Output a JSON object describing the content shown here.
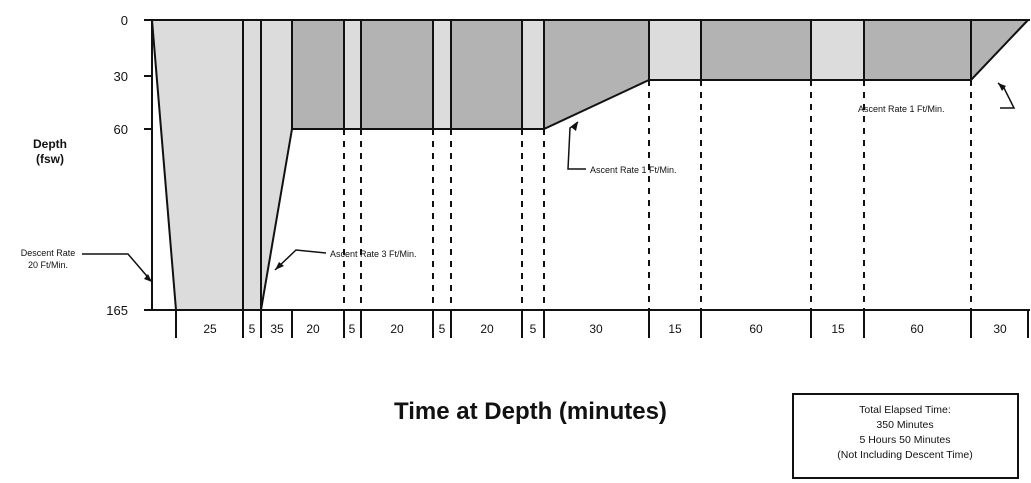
{
  "axis": {
    "y_title_line1": "Depth",
    "y_title_line2": "(fsw)",
    "x_title": "Time at Depth (minutes)",
    "depth_ticks": [
      "0",
      "30",
      "60",
      "165"
    ]
  },
  "segments": [
    {
      "label": "25",
      "kind": "bottom",
      "depth_fsw": 165
    },
    {
      "label": "5",
      "kind": "stop",
      "depth_fsw": 165
    },
    {
      "label": "35",
      "kind": "ascent",
      "from_fsw": 165,
      "to_fsw": 60
    },
    {
      "label": "20",
      "kind": "o2",
      "depth_fsw": 60
    },
    {
      "label": "5",
      "kind": "air",
      "depth_fsw": 60
    },
    {
      "label": "20",
      "kind": "o2",
      "depth_fsw": 60
    },
    {
      "label": "5",
      "kind": "air",
      "depth_fsw": 60
    },
    {
      "label": "20",
      "kind": "o2",
      "depth_fsw": 60
    },
    {
      "label": "5",
      "kind": "air",
      "depth_fsw": 60
    },
    {
      "label": "30",
      "kind": "ascent",
      "from_fsw": 60,
      "to_fsw": 30
    },
    {
      "label": "15",
      "kind": "air",
      "depth_fsw": 30
    },
    {
      "label": "60",
      "kind": "o2",
      "depth_fsw": 30
    },
    {
      "label": "15",
      "kind": "air",
      "depth_fsw": 30
    },
    {
      "label": "60",
      "kind": "o2",
      "depth_fsw": 30
    },
    {
      "label": "30",
      "kind": "ascent",
      "from_fsw": 30,
      "to_fsw": 0
    }
  ],
  "annotations": {
    "descent_line1": "Descent Rate",
    "descent_line2": "20 Ft/Min.",
    "ascent3": "Ascent Rate 3 Ft/Min.",
    "ascent1_mid": "Ascent Rate 1 Ft/Min.",
    "ascent1_end": "Ascent Rate 1 Ft/Min."
  },
  "summary_box": {
    "line1": "Total Elapsed Time:",
    "line2": "350 Minutes",
    "line3": "5 Hours 50 Minutes",
    "line4": "(Not Including Descent Time)"
  },
  "colors": {
    "dark_fill": "#b3b3b3",
    "light_fill": "#dcdcdc",
    "line": "#111111"
  }
}
